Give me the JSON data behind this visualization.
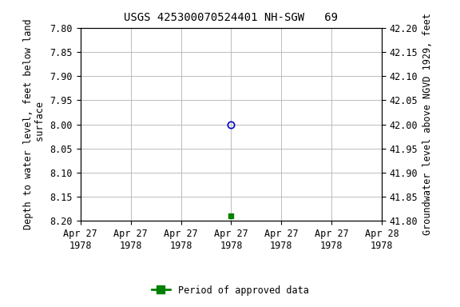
{
  "title": "USGS 425300070524401 NH-SGW   69",
  "ylabel_left": "Depth to water level, feet below land\n surface",
  "ylabel_right": "Groundwater level above NGVD 1929, feet",
  "ylim_left": [
    7.8,
    8.2
  ],
  "ylim_right": [
    41.8,
    42.2
  ],
  "xlim": [
    0,
    6
  ],
  "xtick_positions": [
    0,
    1,
    2,
    3,
    4,
    5,
    6
  ],
  "xtick_labels": [
    "Apr 27\n1978",
    "Apr 27\n1978",
    "Apr 27\n1978",
    "Apr 27\n1978",
    "Apr 27\n1978",
    "Apr 27\n1978",
    "Apr 28\n1978"
  ],
  "yticks_left": [
    7.8,
    7.85,
    7.9,
    7.95,
    8.0,
    8.05,
    8.1,
    8.15,
    8.2
  ],
  "yticks_right": [
    41.8,
    41.85,
    41.9,
    41.95,
    42.0,
    42.05,
    42.1,
    42.15,
    42.2
  ],
  "point_open_x": 3,
  "point_open_y": 8.0,
  "point_open_color": "#0000cc",
  "point_filled_x": 3,
  "point_filled_y": 8.19,
  "point_filled_color": "#008000",
  "legend_label": "Period of approved data",
  "legend_color": "#008000",
  "background_color": "#ffffff",
  "grid_color": "#bbbbbb",
  "title_fontsize": 10,
  "axis_label_fontsize": 8.5,
  "tick_fontsize": 8.5
}
